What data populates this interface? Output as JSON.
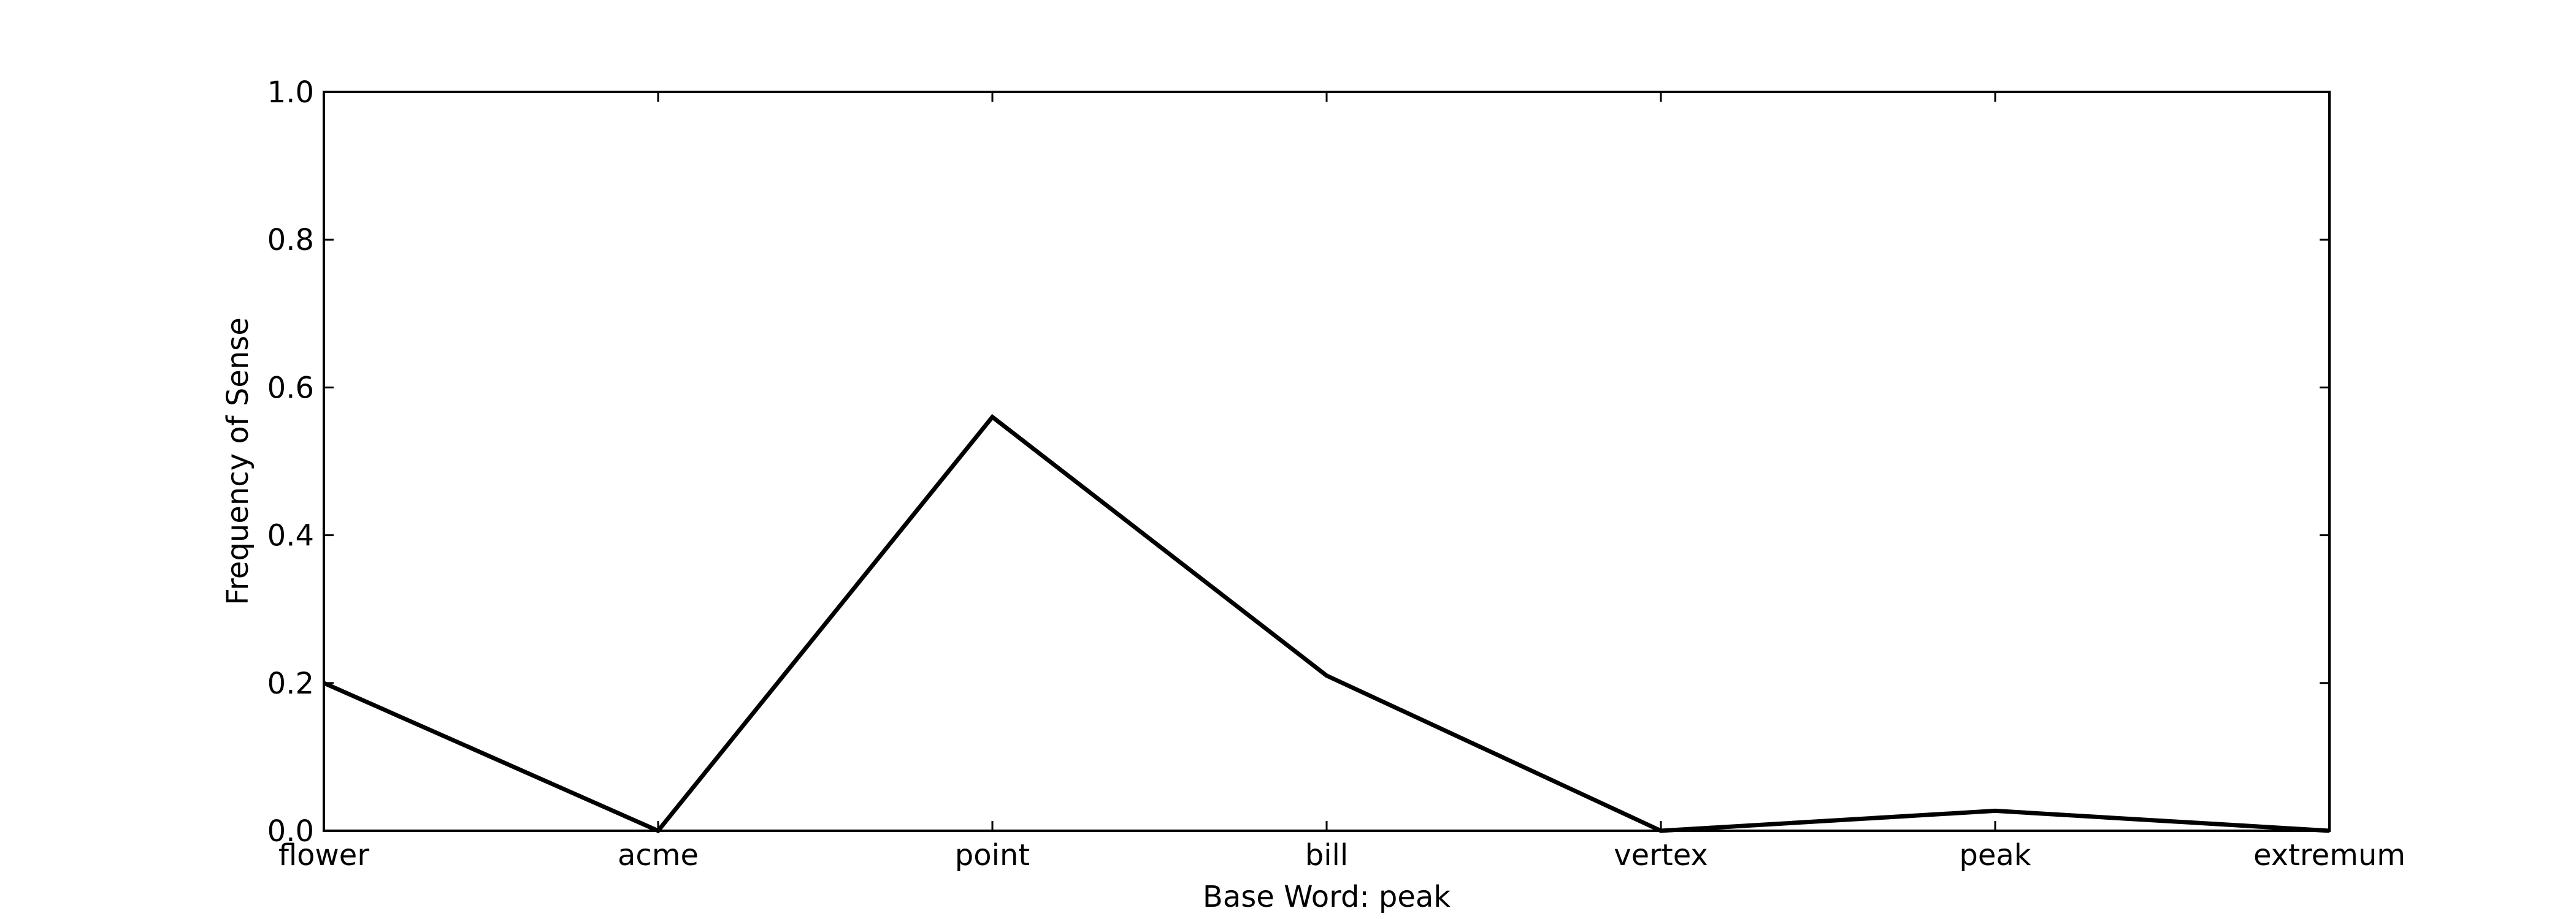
{
  "chart_data": {
    "type": "line",
    "categories": [
      "flower",
      "acme",
      "point",
      "bill",
      "vertex",
      "peak",
      "extremum"
    ],
    "series": [
      {
        "values": [
          0.2,
          0.0,
          0.56,
          0.21,
          0.0,
          0.027,
          0.0
        ],
        "color": "#000000"
      }
    ],
    "yticks": [
      "0.0",
      "0.2",
      "0.4",
      "0.6",
      "0.8",
      "1.0"
    ],
    "xlabel": "Base Word: peak",
    "ylabel": "Frequency of Sense",
    "ylim": [
      0,
      1
    ],
    "grid": false
  }
}
